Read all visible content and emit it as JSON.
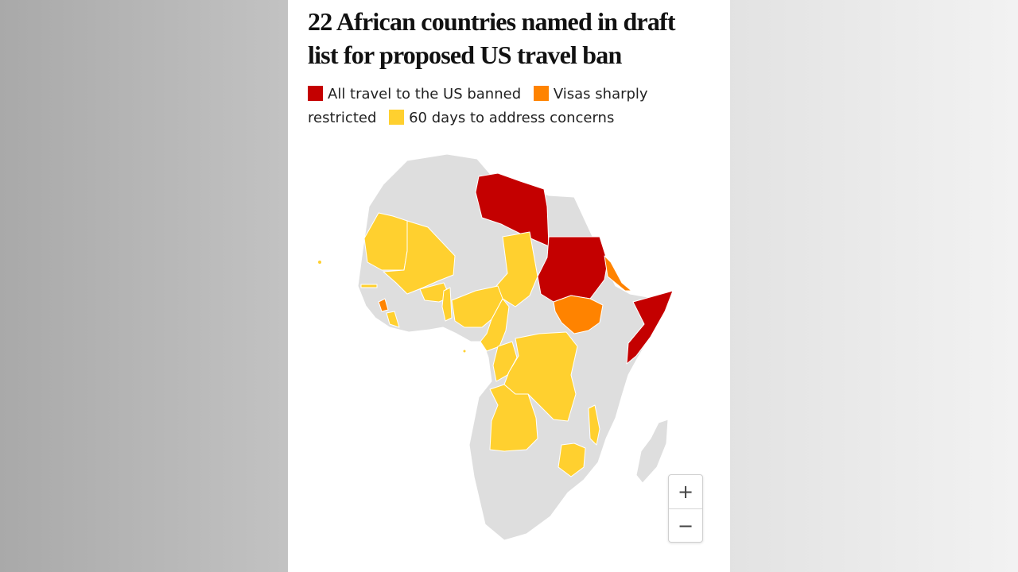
{
  "title": "22 African countries named in draft list for proposed US travel ban",
  "legend": [
    {
      "label": "All travel to the US banned",
      "color": "#c40000"
    },
    {
      "label": "Visas sharply restricted",
      "color": "#ff8300"
    },
    {
      "label": "60 days to address concerns",
      "color": "#ffd02f"
    }
  ],
  "colors": {
    "banned": "#c40000",
    "restricted": "#ff8300",
    "concerns": "#ffd02f",
    "other": "#dedede",
    "border": "#ffffff"
  },
  "countries": [
    {
      "name": "Libya",
      "status": "banned"
    },
    {
      "name": "Sudan",
      "status": "banned"
    },
    {
      "name": "Somalia",
      "status": "banned"
    },
    {
      "name": "Eritrea",
      "status": "restricted"
    },
    {
      "name": "South Sudan",
      "status": "restricted"
    },
    {
      "name": "Sierra Leone",
      "status": "restricted"
    },
    {
      "name": "Mauritania",
      "status": "concerns"
    },
    {
      "name": "Mali",
      "status": "concerns"
    },
    {
      "name": "Burkina Faso",
      "status": "concerns"
    },
    {
      "name": "Gambia",
      "status": "concerns"
    },
    {
      "name": "Liberia",
      "status": "concerns"
    },
    {
      "name": "Benin",
      "status": "concerns"
    },
    {
      "name": "Chad",
      "status": "concerns"
    },
    {
      "name": "Nigeria",
      "status": "concerns"
    },
    {
      "name": "Cameroon",
      "status": "concerns"
    },
    {
      "name": "DR Congo",
      "status": "concerns"
    },
    {
      "name": "Congo",
      "status": "concerns"
    },
    {
      "name": "Angola",
      "status": "concerns"
    },
    {
      "name": "Malawi",
      "status": "concerns"
    },
    {
      "name": "Zimbabwe",
      "status": "concerns"
    },
    {
      "name": "Sao Tome and Principe",
      "status": "concerns"
    },
    {
      "name": "Cape Verde",
      "status": "concerns"
    }
  ],
  "zoom": {
    "in_label": "+",
    "out_label": "−"
  }
}
